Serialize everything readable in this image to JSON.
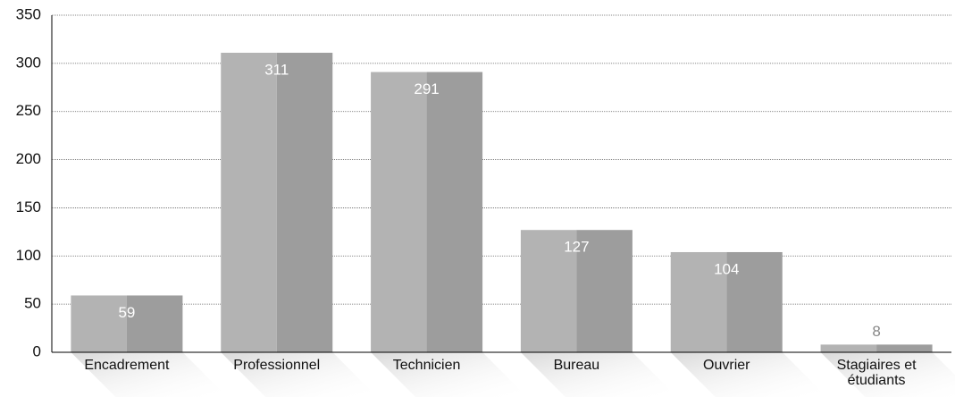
{
  "chart_data": {
    "type": "bar",
    "categories": [
      "Encadrement",
      "Professionnel",
      "Technicien",
      "Bureau",
      "Ouvrier",
      "Stagiaires et étudiants"
    ],
    "values": [
      59,
      311,
      291,
      127,
      104,
      8
    ],
    "color": "#b3b3b3",
    "shade_color": "#9d9d9d",
    "ylim": [
      0,
      350
    ],
    "yticks": [
      0,
      50,
      100,
      150,
      200,
      250,
      300,
      350
    ],
    "grid": true
  }
}
